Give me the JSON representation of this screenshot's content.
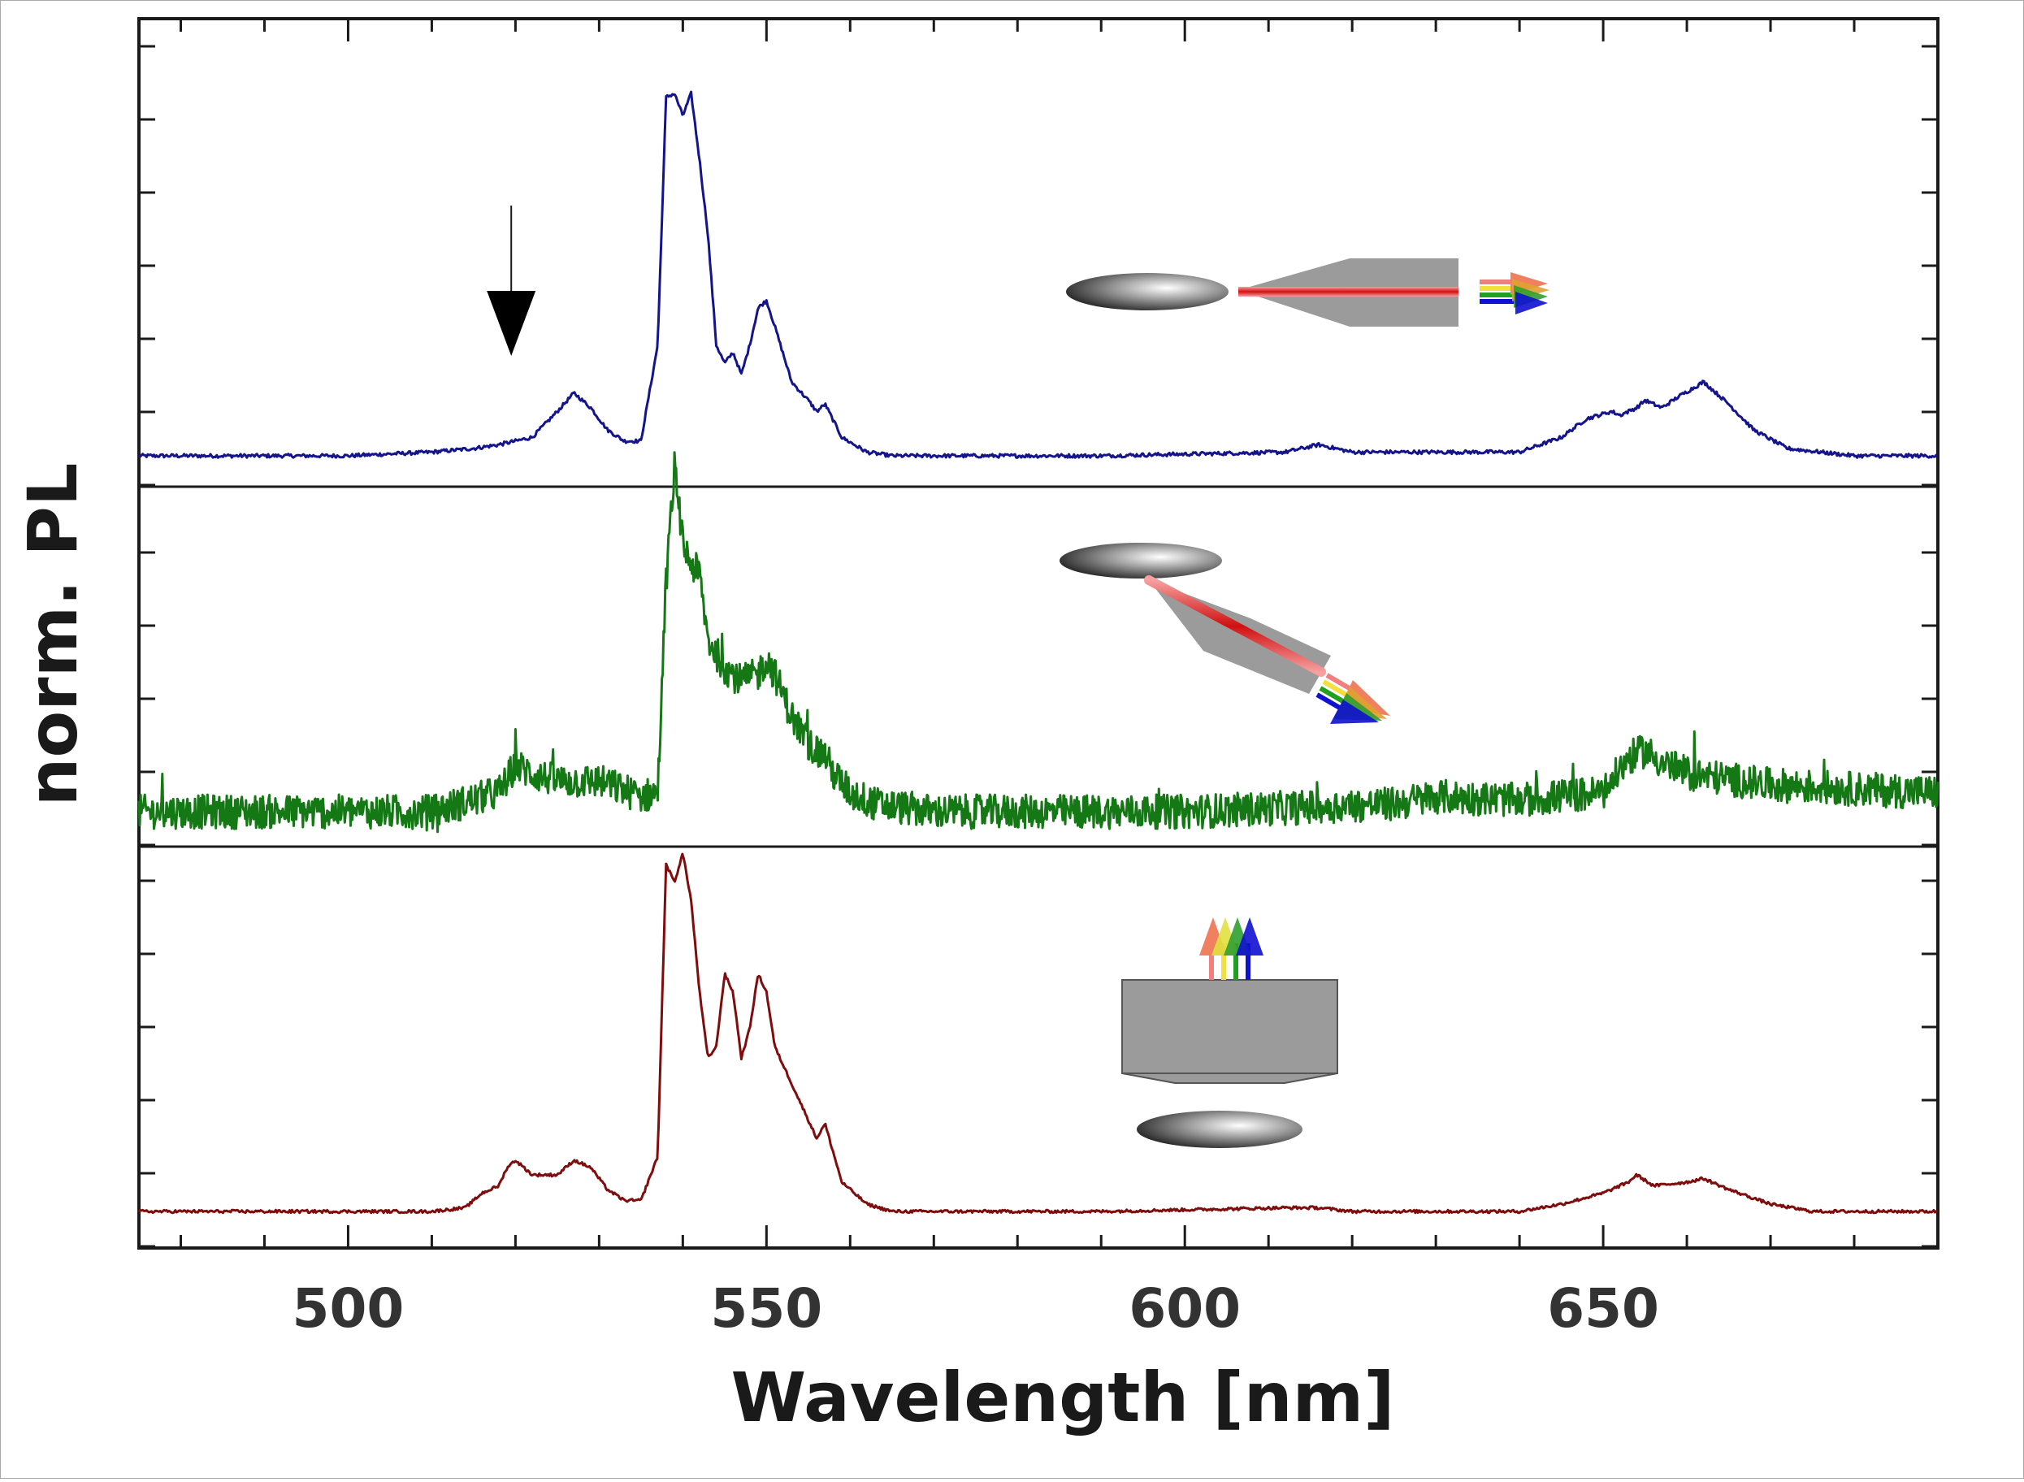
{
  "chart_data": {
    "type": "line",
    "xlabel": "Wavelength [nm]",
    "ylabel": "norm. PL",
    "xlim": [
      475,
      690
    ],
    "x_ticks": [
      500,
      550,
      600,
      650
    ],
    "x_tick_labels": [
      "500",
      "550",
      "600",
      "650"
    ],
    "x_minor_step": 10,
    "y_tick_labels": "none",
    "grid": false,
    "legend": "none",
    "layout": "three vertically stacked panels sharing the wavelength axis",
    "series": [
      {
        "color": "#14148c",
        "panel": "top",
        "noise": 0.005,
        "x": [
          475,
          500,
          510,
          515,
          518,
          520,
          522,
          525,
          527,
          529,
          531,
          533,
          535,
          537,
          538,
          539,
          540,
          541,
          542,
          543,
          544,
          545,
          546,
          547,
          548,
          549,
          550,
          551,
          553,
          555,
          556,
          557,
          559,
          562,
          565,
          590,
          612,
          616,
          620,
          640,
          645,
          648,
          651,
          652,
          654,
          655,
          657,
          659,
          662,
          665,
          668,
          672,
          680,
          690
        ],
        "y": [
          0,
          0.0,
          0.01,
          0.02,
          0.03,
          0.04,
          0.05,
          0.12,
          0.17,
          0.13,
          0.07,
          0.04,
          0.04,
          0.3,
          0.97,
          0.98,
          0.92,
          0.98,
          0.8,
          0.6,
          0.3,
          0.25,
          0.28,
          0.22,
          0.3,
          0.4,
          0.42,
          0.35,
          0.2,
          0.15,
          0.12,
          0.14,
          0.05,
          0.01,
          0.0,
          0.0,
          0.01,
          0.03,
          0.01,
          0.01,
          0.05,
          0.1,
          0.12,
          0.11,
          0.13,
          0.15,
          0.13,
          0.16,
          0.2,
          0.14,
          0.07,
          0.02,
          0.0,
          0.0
        ]
      },
      {
        "color": "#147814",
        "panel": "middle",
        "noise": 0.045,
        "x": [
          475,
          490,
          510,
          518,
          520,
          522,
          525,
          530,
          535,
          537,
          538,
          539,
          540,
          541,
          542,
          543,
          545,
          547,
          549,
          550,
          551,
          553,
          555,
          556,
          557,
          558,
          560,
          563,
          570,
          600,
          625,
          630,
          640,
          650,
          653,
          655,
          657,
          660,
          670,
          690
        ],
        "y": [
          0.0,
          0.0,
          0.0,
          0.05,
          0.12,
          0.1,
          0.08,
          0.08,
          0.04,
          0.05,
          0.6,
          0.9,
          0.7,
          0.65,
          0.62,
          0.45,
          0.38,
          0.34,
          0.36,
          0.4,
          0.36,
          0.25,
          0.18,
          0.16,
          0.15,
          0.1,
          0.05,
          0.02,
          0.0,
          0.0,
          0.02,
          0.04,
          0.03,
          0.05,
          0.14,
          0.16,
          0.13,
          0.1,
          0.07,
          0.05
        ]
      },
      {
        "color": "#7f0d0d",
        "panel": "bottom",
        "noise": 0.004,
        "x": [
          475,
          500,
          510,
          514,
          516,
          518,
          519,
          520,
          522,
          525,
          527,
          529,
          531,
          533,
          535,
          537,
          538,
          539,
          540,
          541,
          542,
          543,
          544,
          545,
          546,
          547,
          548,
          549,
          550,
          551,
          553,
          555,
          556,
          557,
          559,
          562,
          565,
          590,
          612,
          616,
          620,
          640,
          645,
          650,
          653,
          654,
          656,
          660,
          662,
          665,
          670,
          675,
          690
        ],
        "y": [
          0,
          0.0,
          0.0,
          0.01,
          0.05,
          0.07,
          0.12,
          0.14,
          0.1,
          0.1,
          0.14,
          0.12,
          0.06,
          0.03,
          0.03,
          0.15,
          0.95,
          0.9,
          0.98,
          0.85,
          0.6,
          0.42,
          0.45,
          0.65,
          0.6,
          0.42,
          0.5,
          0.65,
          0.6,
          0.45,
          0.35,
          0.25,
          0.2,
          0.24,
          0.08,
          0.02,
          0.0,
          0.0,
          0.01,
          0.01,
          0.0,
          0.0,
          0.02,
          0.05,
          0.08,
          0.1,
          0.07,
          0.08,
          0.09,
          0.06,
          0.02,
          0.0,
          0.0
        ]
      }
    ],
    "annotations": [
      {
        "type": "arrow",
        "direction": "down",
        "at_x": 519.5,
        "panel": "top"
      },
      {
        "type": "schematic",
        "panel": "top",
        "depicts": "horizontal tapered grey fibre beside a grey disk, red beam along the axis, rainbow arrows pointing right"
      },
      {
        "type": "schematic",
        "panel": "middle",
        "depicts": "tilted grey fibre below a grey disk, red beam, rainbow arrows pointing down-right"
      },
      {
        "type": "schematic",
        "panel": "bottom",
        "depicts": "grey block above a grey disk, rainbow arrows pointing up"
      }
    ]
  }
}
